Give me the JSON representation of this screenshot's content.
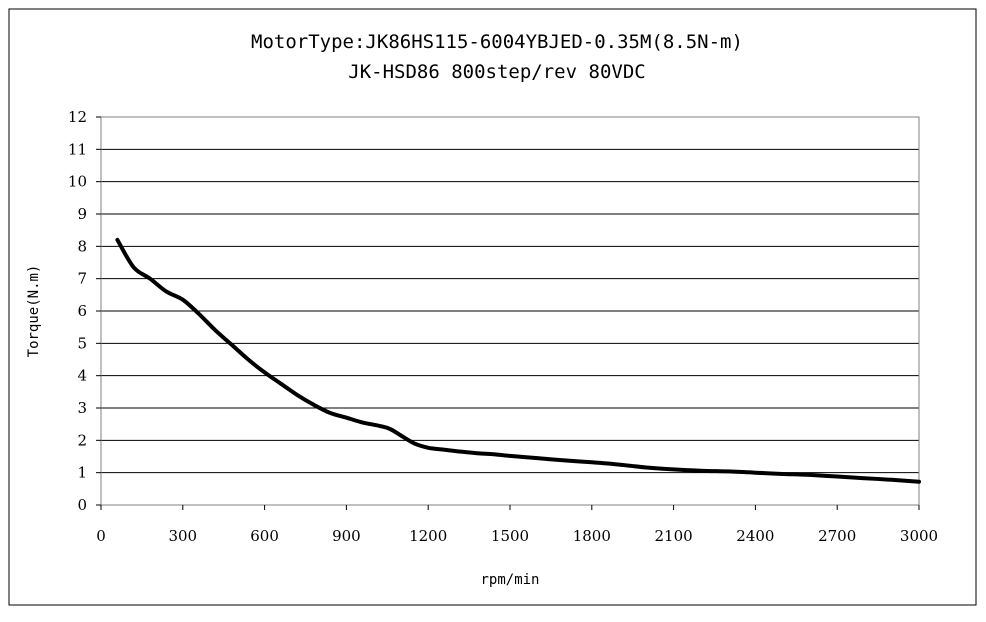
{
  "chart_data": {
    "type": "line",
    "title": "MotorType:JK86HS115-6004YBJED-0.35M(8.5N-m)",
    "subtitle": "JK-HSD86 800step/rev 80VDC",
    "xlabel": "rpm/min",
    "ylabel": "Torque(N.m)",
    "xlim": [
      0,
      3000
    ],
    "ylim": [
      0,
      12
    ],
    "xticks": [
      "0",
      "300",
      "600",
      "900",
      "1200",
      "1500",
      "1800",
      "2100",
      "2400",
      "2700",
      "3000"
    ],
    "yticks": [
      "0",
      "1",
      "2",
      "3",
      "4",
      "5",
      "6",
      "7",
      "8",
      "9",
      "10",
      "11",
      "12"
    ],
    "grid": "horizontal",
    "series": [
      {
        "x": [
          60,
          120,
          180,
          240,
          300,
          360,
          420,
          480,
          540,
          600,
          660,
          720,
          780,
          840,
          900,
          960,
          1020,
          1060,
          1100,
          1150,
          1200,
          1260,
          1320,
          1380,
          1440,
          1500,
          1600,
          1700,
          1800,
          1900,
          2000,
          2100,
          2200,
          2300,
          2400,
          2500,
          2600,
          2700,
          2800,
          2900,
          3000
        ],
        "y": [
          8.2,
          7.35,
          7.0,
          6.6,
          6.35,
          5.9,
          5.4,
          4.95,
          4.5,
          4.1,
          3.75,
          3.4,
          3.1,
          2.85,
          2.7,
          2.55,
          2.45,
          2.35,
          2.15,
          1.9,
          1.77,
          1.71,
          1.65,
          1.6,
          1.57,
          1.52,
          1.45,
          1.38,
          1.32,
          1.25,
          1.16,
          1.1,
          1.06,
          1.04,
          1.0,
          0.96,
          0.93,
          0.88,
          0.83,
          0.78,
          0.72
        ]
      }
    ]
  },
  "colors": {
    "line": "#000000",
    "grid": "#000000",
    "background": "#ffffff"
  }
}
